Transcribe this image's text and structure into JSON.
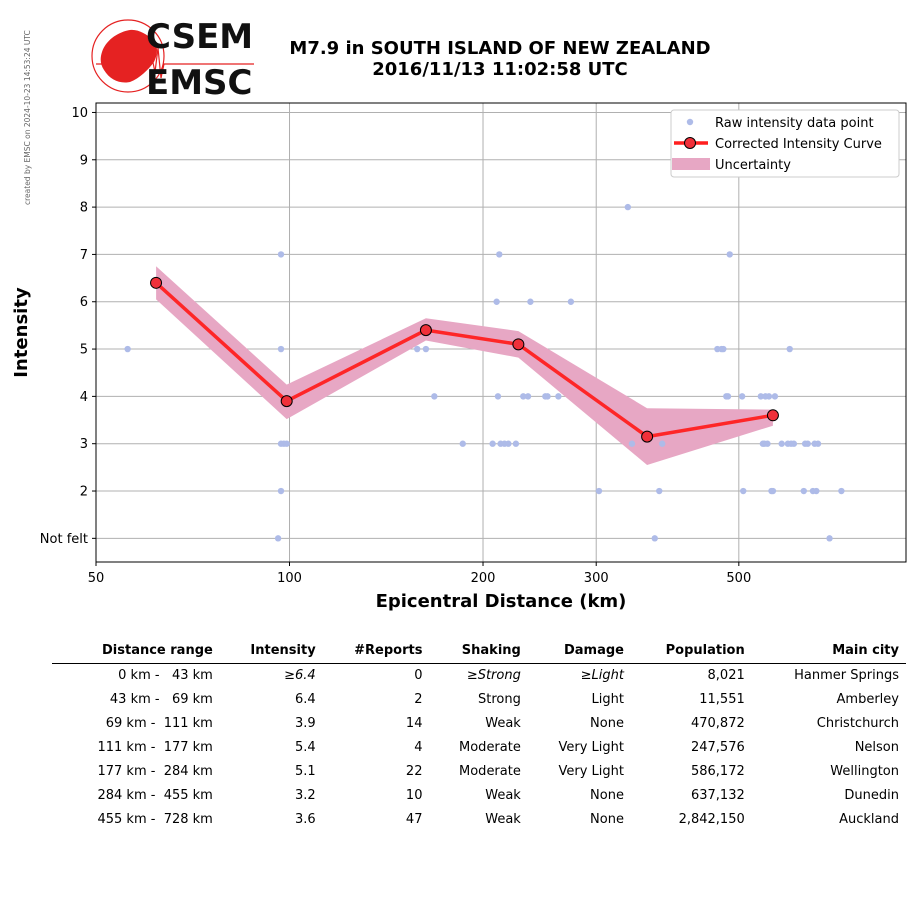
{
  "credit": "created by EMSC on 2024-10-23 14:53:24 UTC",
  "logo": {
    "line1": "CSEM",
    "line2": "EMSC"
  },
  "title": {
    "line1": "M7.9 in SOUTH ISLAND OF NEW ZEALAND",
    "line2": "2016/11/13 11:02:58 UTC"
  },
  "colors": {
    "raw": "#aebbe8",
    "curve": "#ff1f1f",
    "marker": "#f0303a",
    "uncertainty": "#e7a7c4",
    "grid": "#b0b0b0",
    "logo": "#e52222"
  },
  "chart_data": {
    "type": "line",
    "xlabel": "Epicentral Distance (km)",
    "ylabel": "Intensity",
    "xscale": "log",
    "xlim": [
      50,
      910
    ],
    "ylim": [
      0.5,
      10.2
    ],
    "xticks": [
      50,
      100,
      200,
      300,
      500
    ],
    "xticklabels": [
      "50",
      "100",
      "200",
      "300",
      "500"
    ],
    "yticks": [
      1,
      2,
      3,
      4,
      5,
      6,
      7,
      8,
      9,
      10
    ],
    "yticklabels": [
      "Not felt",
      "2",
      "3",
      "4",
      "5",
      "6",
      "7",
      "8",
      "9",
      "10"
    ],
    "grid": true,
    "legend_position": "top-right",
    "series": [
      {
        "name": "Raw intensity data point",
        "style": "scatter",
        "points": [
          [
            56,
            5
          ],
          [
            97,
            7
          ],
          [
            97,
            5
          ],
          [
            97,
            3
          ],
          [
            98,
            3
          ],
          [
            99,
            3
          ],
          [
            97,
            2
          ],
          [
            96,
            1
          ],
          [
            158,
            5
          ],
          [
            163,
            5
          ],
          [
            168,
            4
          ],
          [
            186,
            3
          ],
          [
            207,
            3
          ],
          [
            210,
            6
          ],
          [
            211,
            4
          ],
          [
            212,
            7
          ],
          [
            213,
            3
          ],
          [
            216,
            3
          ],
          [
            219,
            3
          ],
          [
            225,
            3
          ],
          [
            231,
            4
          ],
          [
            235,
            4
          ],
          [
            237,
            6
          ],
          [
            250,
            4
          ],
          [
            252,
            4
          ],
          [
            262,
            4
          ],
          [
            274,
            6
          ],
          [
            303,
            2
          ],
          [
            336,
            8
          ],
          [
            341,
            3
          ],
          [
            370,
            1
          ],
          [
            376,
            2
          ],
          [
            380,
            3
          ],
          [
            463,
            5
          ],
          [
            470,
            5
          ],
          [
            473,
            5
          ],
          [
            478,
            4
          ],
          [
            481,
            4
          ],
          [
            484,
            7
          ],
          [
            506,
            4
          ],
          [
            508,
            2
          ],
          [
            541,
            4
          ],
          [
            545,
            3
          ],
          [
            548,
            3
          ],
          [
            550,
            4
          ],
          [
            554,
            3
          ],
          [
            557,
            4
          ],
          [
            562,
            2
          ],
          [
            565,
            2
          ],
          [
            569,
            4
          ],
          [
            583,
            3
          ],
          [
            596,
            3
          ],
          [
            600,
            5
          ],
          [
            603,
            3
          ],
          [
            609,
            3
          ],
          [
            631,
            2
          ],
          [
            634,
            3
          ],
          [
            640,
            3
          ],
          [
            652,
            2
          ],
          [
            656,
            3
          ],
          [
            660,
            2
          ],
          [
            664,
            3
          ],
          [
            692,
            1
          ],
          [
            722,
            2
          ]
        ]
      },
      {
        "name": "Corrected Intensity Curve",
        "style": "line-marker",
        "x": [
          62,
          99,
          163,
          227,
          360,
          565
        ],
        "y": [
          6.4,
          3.9,
          5.4,
          5.1,
          3.15,
          3.6
        ]
      },
      {
        "name": "Uncertainty",
        "style": "band",
        "x": [
          62,
          99,
          163,
          227,
          360,
          565
        ],
        "lower": [
          6.05,
          3.52,
          5.18,
          4.82,
          2.55,
          3.38
        ],
        "upper": [
          6.75,
          4.25,
          5.65,
          5.38,
          3.75,
          3.72
        ]
      }
    ]
  },
  "table": {
    "headers": [
      "Distance range",
      "Intensity",
      "#Reports",
      "Shaking",
      "Damage",
      "Population",
      "Main city"
    ],
    "rows": [
      [
        "0 km -   43 km",
        "≥6.4",
        "0",
        "≥Strong",
        "≥Light",
        "8,021",
        "Hanmer Springs"
      ],
      [
        "43 km -   69 km",
        "6.4",
        "2",
        "Strong",
        "Light",
        "11,551",
        "Amberley"
      ],
      [
        "69 km -  111 km",
        "3.9",
        "14",
        "Weak",
        "None",
        "470,872",
        "Christchurch"
      ],
      [
        "111 km -  177 km",
        "5.4",
        "4",
        "Moderate",
        "Very Light",
        "247,576",
        "Nelson"
      ],
      [
        "177 km -  284 km",
        "5.1",
        "22",
        "Moderate",
        "Very Light",
        "586,172",
        "Wellington"
      ],
      [
        "284 km -  455 km",
        "3.2",
        "10",
        "Weak",
        "None",
        "637,132",
        "Dunedin"
      ],
      [
        "455 km -  728 km",
        "3.6",
        "47",
        "Weak",
        "None",
        "2,842,150",
        "Auckland"
      ]
    ]
  }
}
